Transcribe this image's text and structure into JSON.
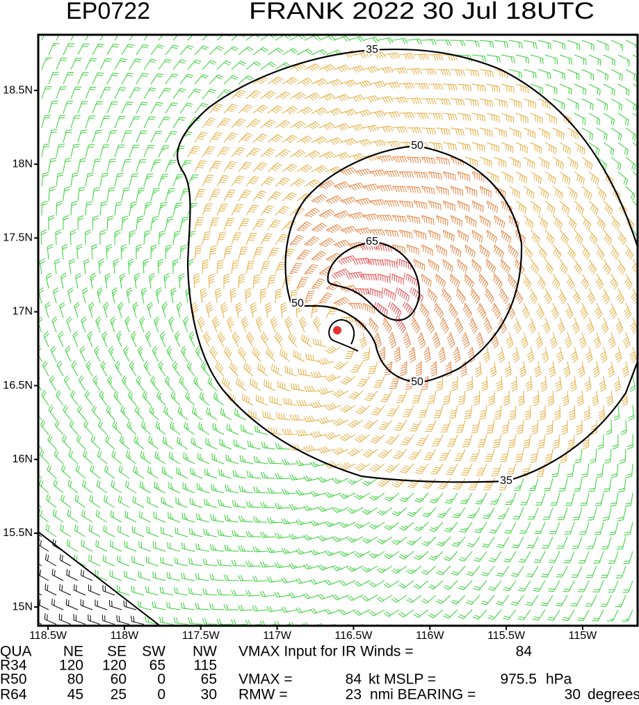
{
  "chart_data": {
    "type": "wind-barb-map",
    "title": "EP0722",
    "subtitle": "FRANK 2022 30 Jul 18UTC",
    "xlim": [
      -118.564,
      -114.64
    ],
    "ylim": [
      14.873,
      18.877
    ],
    "xticks": [
      {
        "value": -118.5,
        "label": "118.5W"
      },
      {
        "value": -118,
        "label": "118W"
      },
      {
        "value": -117.5,
        "label": "117.5W"
      },
      {
        "value": -117,
        "label": "117W"
      },
      {
        "value": -116.5,
        "label": "116.5W"
      },
      {
        "value": -116,
        "label": "116W"
      },
      {
        "value": -115.5,
        "label": "115.5W"
      },
      {
        "value": -115,
        "label": "115W"
      }
    ],
    "yticks": [
      {
        "value": 15,
        "label": "15N"
      },
      {
        "value": 15.5,
        "label": "15.5N"
      },
      {
        "value": 16,
        "label": "16N"
      },
      {
        "value": 16.5,
        "label": "16.5N"
      },
      {
        "value": 17,
        "label": "17N"
      },
      {
        "value": 17.5,
        "label": "17.5N"
      },
      {
        "value": 18,
        "label": "18N"
      },
      {
        "value": 18.5,
        "label": "18.5N"
      }
    ],
    "contours": [
      {
        "level": 35
      },
      {
        "level": 50
      },
      {
        "level": 65
      }
    ]
  },
  "radii_table": {
    "header": [
      "QUA",
      "NE",
      "SE",
      "SW",
      "NW"
    ],
    "rows": [
      [
        "R34",
        120,
        120,
        65,
        115
      ],
      [
        "R50",
        80,
        60,
        0,
        65
      ],
      [
        "R64",
        45,
        25,
        0,
        30
      ]
    ]
  },
  "info": {
    "ir_vmax_label": "VMAX Input for IR Winds =",
    "ir_vmax": 84,
    "vmax_label": "VMAX =",
    "vmax": 84,
    "mslp_label": "kt MSLP =",
    "mslp": 975.5,
    "mslp_unit": "hPa",
    "rmw_label": "RMW =",
    "rmw": 23,
    "bearing_label": "nmi BEARING =",
    "bearing": 30,
    "bearing_unit": "degrees"
  }
}
